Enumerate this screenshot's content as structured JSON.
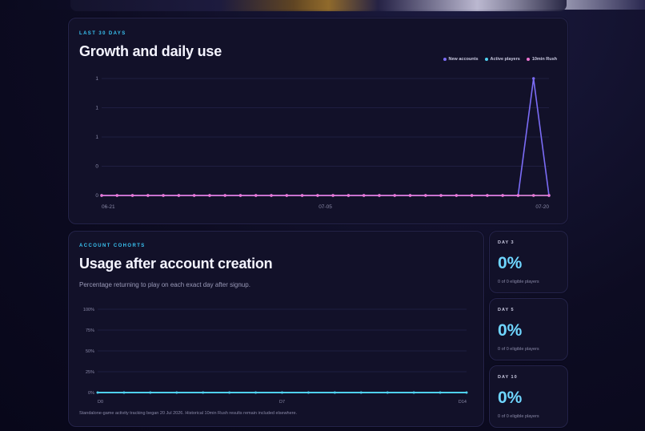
{
  "growth": {
    "eyebrow": "LAST 30 DAYS",
    "title": "Growth and daily use",
    "legend": [
      {
        "label": "New accounts",
        "color": "#7b6cf6"
      },
      {
        "label": "Active players",
        "color": "#4fd1f0"
      },
      {
        "label": "10min Rush",
        "color": "#ee74d2"
      }
    ]
  },
  "cohorts": {
    "eyebrow": "ACCOUNT COHORTS",
    "title": "Usage after account creation",
    "subtitle": "Percentage returning to play on each exact day after signup.",
    "footnote": "Standalone-game activity tracking began 20 Jul 2026. Historical 10min Rush results remain included elsewhere."
  },
  "stats": [
    {
      "label": "DAY 3",
      "value": "0%",
      "sub": "0 of 0 eligible players"
    },
    {
      "label": "DAY 5",
      "value": "0%",
      "sub": "0 of 0 eligible players"
    },
    {
      "label": "DAY 10",
      "value": "0%",
      "sub": "0 of 0 eligible players"
    }
  ],
  "chart_data": [
    {
      "type": "line",
      "title": "Growth and daily use",
      "y_tick_labels": [
        "1",
        "1",
        "1",
        "0",
        "0"
      ],
      "x_tick_labels": [
        "06-21",
        "07-05",
        "07-20"
      ],
      "point_count": 30,
      "ylim": [
        0,
        1
      ],
      "grid": true,
      "legend_position": "top-right",
      "series": [
        {
          "name": "New accounts",
          "color": "#7b6cf6",
          "values": [
            0,
            0,
            0,
            0,
            0,
            0,
            0,
            0,
            0,
            0,
            0,
            0,
            0,
            0,
            0,
            0,
            0,
            0,
            0,
            0,
            0,
            0,
            0,
            0,
            0,
            0,
            0,
            0,
            1,
            0
          ]
        },
        {
          "name": "Active players",
          "color": "#4fd1f0",
          "values": [
            0,
            0,
            0,
            0,
            0,
            0,
            0,
            0,
            0,
            0,
            0,
            0,
            0,
            0,
            0,
            0,
            0,
            0,
            0,
            0,
            0,
            0,
            0,
            0,
            0,
            0,
            0,
            0,
            0,
            0
          ]
        },
        {
          "name": "10min Rush",
          "color": "#ee74d2",
          "values": [
            0,
            0,
            0,
            0,
            0,
            0,
            0,
            0,
            0,
            0,
            0,
            0,
            0,
            0,
            0,
            0,
            0,
            0,
            0,
            0,
            0,
            0,
            0,
            0,
            0,
            0,
            0,
            0,
            0,
            0
          ]
        }
      ]
    },
    {
      "type": "line",
      "title": "Usage after account creation",
      "y_tick_labels": [
        "100%",
        "75%",
        "50%",
        "25%",
        "0%"
      ],
      "x_tick_labels": [
        "D0",
        "D7",
        "D14"
      ],
      "ylim": [
        0,
        100
      ],
      "grid": true,
      "series": [
        {
          "color": "#4fd1f0",
          "values": [
            0,
            0,
            0,
            0,
            0,
            0,
            0,
            0,
            0,
            0,
            0,
            0,
            0,
            0,
            0
          ]
        }
      ]
    }
  ]
}
